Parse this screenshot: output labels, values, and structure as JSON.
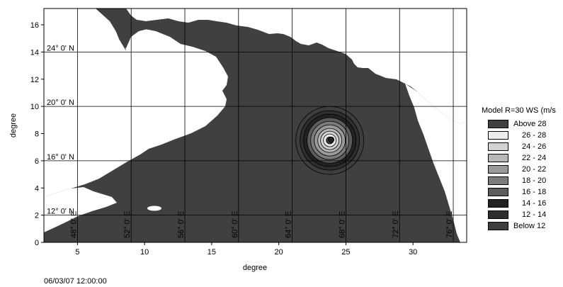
{
  "chart": {
    "xlabel": "degree",
    "ylabel": "degree",
    "xlim": [
      2.5,
      34
    ],
    "ylim": [
      0,
      17.2
    ],
    "x_ticks": [
      5,
      10,
      15,
      20,
      25,
      30
    ],
    "y_ticks": [
      0,
      2,
      4,
      6,
      8,
      10,
      12,
      14,
      16
    ],
    "lat_lines": [
      {
        "label": "24° 0' N",
        "y": 14.0
      },
      {
        "label": "20° 0' N",
        "y": 10.0
      },
      {
        "label": "16° 0' N",
        "y": 6.0
      },
      {
        "label": "12° 0' N",
        "y": 2.0
      }
    ],
    "lon_lines": [
      {
        "label": "48° 0' E",
        "x": 5.0
      },
      {
        "label": "52° 0' E",
        "x": 9.0
      },
      {
        "label": "56° 0' E",
        "x": 13.0
      },
      {
        "label": "60° 0' E",
        "x": 17.0
      },
      {
        "label": "64° 0' E",
        "x": 21.0
      },
      {
        "label": "68° 0' E",
        "x": 25.0
      },
      {
        "label": "72° 0' E",
        "x": 29.0
      },
      {
        "label": "76° 0' E",
        "x": 33.0
      }
    ],
    "cyclone_center": {
      "x": 23.8,
      "y": 7.5
    }
  },
  "legend": {
    "title": "Model R=30 WS (m/s",
    "items": [
      {
        "label": "Above 28",
        "color": "#404040"
      },
      {
        "label": "26 - 28",
        "color": "#ececec"
      },
      {
        "label": "24 - 26",
        "color": "#d2d2d2"
      },
      {
        "label": "22 - 24",
        "color": "#b8b8b8"
      },
      {
        "label": "20 - 22",
        "color": "#9a9a9a"
      },
      {
        "label": "18 - 20",
        "color": "#7c7c7c"
      },
      {
        "label": "16 - 18",
        "color": "#5c5c5c"
      },
      {
        "label": "14 - 16",
        "color": "#222222"
      },
      {
        "label": "12 - 14",
        "color": "#2e2e2e"
      },
      {
        "label": "Below 12",
        "color": "#3e3e3e"
      }
    ]
  },
  "timestamp": "06/03/07 12:00:00",
  "colors": {
    "water": "#404040",
    "land": "#ffffff",
    "grid": "#000000"
  }
}
